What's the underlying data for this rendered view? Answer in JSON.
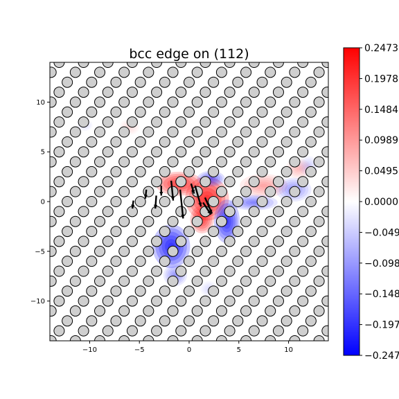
{
  "chart_data": {
    "type": "heatmap",
    "title": "bcc edge on (112)",
    "xlabel": "",
    "ylabel": "",
    "xlim": [
      -14,
      14
    ],
    "ylim": [
      -14,
      14
    ],
    "x_ticks": [
      -10,
      -5,
      0,
      5,
      10
    ],
    "y_ticks": [
      -10,
      -5,
      0,
      5,
      10
    ],
    "x_tick_labels": [
      "−10",
      "−5",
      "0",
      "5",
      "10"
    ],
    "y_tick_labels": [
      "−10",
      "−5",
      "0",
      "5",
      "10"
    ],
    "colormap": "bwr",
    "colors": {
      "min": "#0000ff",
      "mid": "#ffffff",
      "max": "#ff0000"
    },
    "colorbar": {
      "vmin": -0.2473,
      "vmax": 0.2473,
      "ticks": [
        0.2473,
        0.1978,
        0.1484,
        0.0989,
        0.0495,
        0.0,
        -0.0495,
        -0.0989,
        -0.1484,
        -0.1978,
        -0.2473
      ],
      "tick_labels": [
        "0.2473",
        "0.1978",
        "0.1484",
        "0.0989",
        "0.0495",
        "0.0000",
        "−0.0495",
        "−0.0989",
        "−0.1484",
        "−0.1978",
        "−0.2473"
      ]
    },
    "grid": false,
    "markers": "atom-circles",
    "arrows": "displacement-vectors",
    "major_arrows": [
      {
        "x": 1.4,
        "y": -0.1,
        "dx": 0.8,
        "dy": -1.2
      },
      {
        "x": -1.8,
        "y": 2.1,
        "dx": 0.2,
        "dy": -2.0
      },
      {
        "x": -0.9,
        "y": 1.2,
        "dx": 0.3,
        "dy": -2.9
      },
      {
        "x": 0.6,
        "y": 1.6,
        "dx": 0.6,
        "dy": -2.1
      },
      {
        "x": 1.6,
        "y": 0.4,
        "dx": 0.7,
        "dy": -1.6
      },
      {
        "x": -3.3,
        "y": 0.6,
        "dx": -0.1,
        "dy": -1.3
      },
      {
        "x": -4.3,
        "y": 1.2,
        "dx": -0.1,
        "dy": -0.9
      },
      {
        "x": -2.8,
        "y": 1.6,
        "dx": 0.0,
        "dy": -1.0
      },
      {
        "x": 0.2,
        "y": 1.8,
        "dx": 0.3,
        "dy": -1.0
      },
      {
        "x": -5.6,
        "y": 0.1,
        "dx": -0.1,
        "dy": -0.8
      }
    ]
  }
}
